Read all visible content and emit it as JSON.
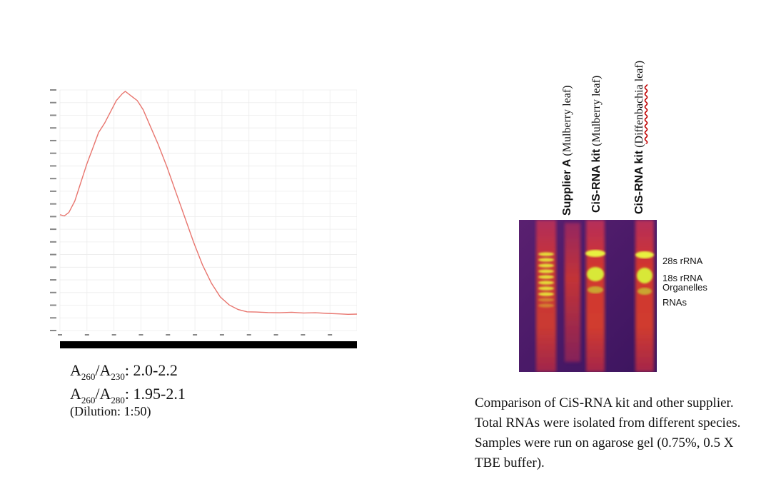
{
  "spectrum": {
    "line_color": "#e8756e"
  },
  "ratios": {
    "r1": {
      "a": "A",
      "sub1": "260",
      "slash": "/A",
      "sub2": "230",
      "value": ": 2.0-2.2"
    },
    "r2": {
      "a": "A",
      "sub1": "260",
      "slash": "/A",
      "sub2": "280",
      "value": ": 1.95-2.1"
    },
    "dilution": "(Dilution: 1:50)"
  },
  "lanes": [
    {
      "bold": "Supplier A",
      "rest": " (Mulberry leaf)"
    },
    {
      "bold": "CiS-RNA kit",
      "rest": " (Mulberry leaf)"
    },
    {
      "bold": "CiS-RNA kit",
      "rest_prefix": " (",
      "rest_wavy": "Diffenbachia",
      "rest_suffix": " leaf)"
    }
  ],
  "bands": {
    "b28s": "28s rRNA",
    "b18s": "18s rRNA",
    "organelles": "Organelles",
    "rnas": "RNAs"
  },
  "caption": "Comparison of CiS-RNA kit and other supplier. Total RNAs were isolated from different species. Samples were run on agarose gel (0.75%, 0.5 X TBE buffer)."
}
